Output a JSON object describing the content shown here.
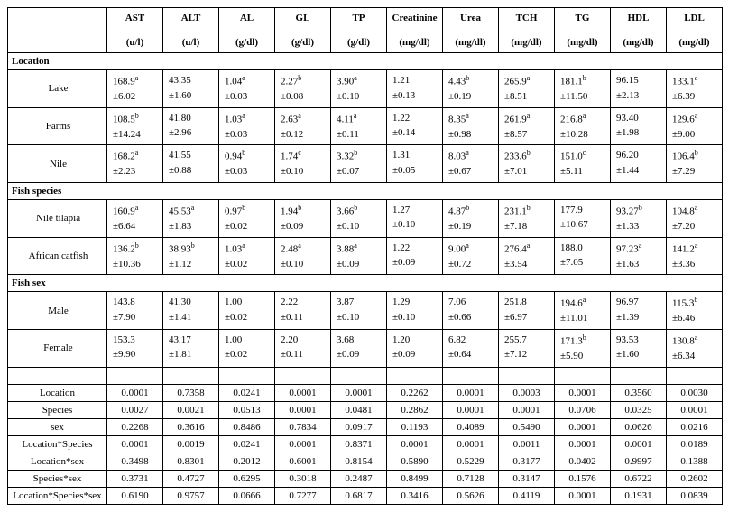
{
  "columns": [
    {
      "name": "AST",
      "unit": "(u/l)"
    },
    {
      "name": "ALT",
      "unit": "(u/l)"
    },
    {
      "name": "AL",
      "unit": "(g/dl)"
    },
    {
      "name": "GL",
      "unit": "(g/dl)"
    },
    {
      "name": "TP",
      "unit": "(g/dl)"
    },
    {
      "name": "Creatinine",
      "unit": "(mg/dl)"
    },
    {
      "name": "Urea",
      "unit": "(mg/dl)"
    },
    {
      "name": "TCH",
      "unit": "(mg/dl)"
    },
    {
      "name": "TG",
      "unit": "(mg/dl)"
    },
    {
      "name": "HDL",
      "unit": "(mg/dl)"
    },
    {
      "name": "LDL",
      "unit": "(mg/dl)"
    }
  ],
  "sections": [
    {
      "title": "Location",
      "rows": [
        {
          "label": "Lake",
          "cells": [
            {
              "m": "168.9",
              "s": "a",
              "e": "±6.02"
            },
            {
              "m": "43.35",
              "s": "",
              "e": "±1.60"
            },
            {
              "m": "1.04",
              "s": "a",
              "e": "±0.03"
            },
            {
              "m": "2.27",
              "s": "b",
              "e": "±0.08"
            },
            {
              "m": "3.90",
              "s": "a",
              "e": "±0.10"
            },
            {
              "m": "1.21",
              "s": "",
              "e": "±0.13"
            },
            {
              "m": "4.43",
              "s": "b",
              "e": "±0.19"
            },
            {
              "m": "265.9",
              "s": "a",
              "e": "±8.51"
            },
            {
              "m": "181.1",
              "s": "b",
              "e": "±11.50"
            },
            {
              "m": "96.15",
              "s": "",
              "e": "±2.13"
            },
            {
              "m": "133.1",
              "s": "a",
              "e": "±6.39"
            }
          ]
        },
        {
          "label": "Farms",
          "cells": [
            {
              "m": "108.5",
              "s": "b",
              "e": "±14.24"
            },
            {
              "m": "41.80",
              "s": "",
              "e": "±2.96"
            },
            {
              "m": "1.03",
              "s": "a",
              "e": "±0.03"
            },
            {
              "m": "2.63",
              "s": "a",
              "e": "±0.12"
            },
            {
              "m": "4.11",
              "s": "a",
              "e": "±0.11"
            },
            {
              "m": "1.22",
              "s": "",
              "e": "±0.14"
            },
            {
              "m": "8.35",
              "s": "a",
              "e": "±0.98"
            },
            {
              "m": "261.9",
              "s": "a",
              "e": "±8.57"
            },
            {
              "m": "216.8",
              "s": "a",
              "e": "±10.28"
            },
            {
              "m": "93.40",
              "s": "",
              "e": "±1.98"
            },
            {
              "m": "129.6",
              "s": "a",
              "e": "±9.00"
            }
          ]
        },
        {
          "label": "Nile",
          "cells": [
            {
              "m": "168.2",
              "s": "a",
              "e": "±2.23"
            },
            {
              "m": "41.55",
              "s": "",
              "e": "±0.88"
            },
            {
              "m": "0.94",
              "s": "b",
              "e": "±0.03"
            },
            {
              "m": "1.74",
              "s": "c",
              "e": "±0.10"
            },
            {
              "m": "3.32",
              "s": "b",
              "e": "±0.07"
            },
            {
              "m": "1.31",
              "s": "",
              "e": "±0.05"
            },
            {
              "m": "8.03",
              "s": "a",
              "e": "±0.67"
            },
            {
              "m": "233.6",
              "s": "b",
              "e": "±7.01"
            },
            {
              "m": "151.0",
              "s": "c",
              "e": "±5.11"
            },
            {
              "m": "96.20",
              "s": "",
              "e": "±1.44"
            },
            {
              "m": "106.4",
              "s": "b",
              "e": "±7.29"
            }
          ]
        }
      ]
    },
    {
      "title": "Fish species",
      "rows": [
        {
          "label": "Nile tilapia",
          "cells": [
            {
              "m": "160.9",
              "s": "a",
              "e": "±6.64"
            },
            {
              "m": "45.53",
              "s": "a",
              "e": "±1.83"
            },
            {
              "m": "0.97",
              "s": "b",
              "e": "±0.02"
            },
            {
              "m": "1.94",
              "s": "b",
              "e": "±0.09"
            },
            {
              "m": "3.66",
              "s": "b",
              "e": "±0.10"
            },
            {
              "m": "1.27",
              "s": "",
              "e": "±0.10"
            },
            {
              "m": "4.87",
              "s": "b",
              "e": "±0.19"
            },
            {
              "m": "231.1",
              "s": "b",
              "e": "±7.18"
            },
            {
              "m": "177.9",
              "s": "",
              "e": "±10.67"
            },
            {
              "m": "93.27",
              "s": "b",
              "e": "±1.33"
            },
            {
              "m": "104.8",
              "s": "a",
              "e": "±7.20"
            }
          ]
        },
        {
          "label": "African catfish",
          "cells": [
            {
              "m": "136.2",
              "s": "b",
              "e": "±10.36"
            },
            {
              "m": "38.93",
              "s": "b",
              "e": "±1.12"
            },
            {
              "m": "1.03",
              "s": "a",
              "e": "±0.02"
            },
            {
              "m": "2.48",
              "s": "a",
              "e": "±0.10"
            },
            {
              "m": "3.88",
              "s": "a",
              "e": "±0.09"
            },
            {
              "m": "1.22",
              "s": "",
              "e": "±0.09"
            },
            {
              "m": "9.00",
              "s": "a",
              "e": "±0.72"
            },
            {
              "m": "276.4",
              "s": "a",
              "e": "±3.54"
            },
            {
              "m": "188.0",
              "s": "",
              "e": "±7.05"
            },
            {
              "m": "97.23",
              "s": "a",
              "e": "±1.63"
            },
            {
              "m": "141.2",
              "s": "a",
              "e": "±3.36"
            }
          ]
        }
      ]
    },
    {
      "title": "Fish sex",
      "rows": [
        {
          "label": "Male",
          "cells": [
            {
              "m": "143.8",
              "s": "",
              "e": "±7.90"
            },
            {
              "m": "41.30",
              "s": "",
              "e": "±1.41"
            },
            {
              "m": "1.00",
              "s": "",
              "e": "±0.02"
            },
            {
              "m": "2.22",
              "s": "",
              "e": "±0.11"
            },
            {
              "m": "3.87",
              "s": "",
              "e": "±0.10"
            },
            {
              "m": "1.29",
              "s": "",
              "e": "±0.10"
            },
            {
              "m": "7.06",
              "s": "",
              "e": "±0.66"
            },
            {
              "m": "251.8",
              "s": "",
              "e": "±6.97"
            },
            {
              "m": "194.6",
              "s": "a",
              "e": "±11.01"
            },
            {
              "m": "96.97",
              "s": "",
              "e": "±1.39"
            },
            {
              "m": "115.3",
              "s": "b",
              "e": "±6.46"
            }
          ]
        },
        {
          "label": "Female",
          "cells": [
            {
              "m": "153.3",
              "s": "",
              "e": "±9.90"
            },
            {
              "m": "43.17",
              "s": "",
              "e": "±1.81"
            },
            {
              "m": "1.00",
              "s": "",
              "e": "±0.02"
            },
            {
              "m": "2.20",
              "s": "",
              "e": "±0.11"
            },
            {
              "m": "3.68",
              "s": "",
              "e": "±0.09"
            },
            {
              "m": "1.20",
              "s": "",
              "e": "±0.09"
            },
            {
              "m": "6.82",
              "s": "",
              "e": "±0.64"
            },
            {
              "m": "255.7",
              "s": "",
              "e": "±7.12"
            },
            {
              "m": "171.3",
              "s": "b",
              "e": "±5.90"
            },
            {
              "m": "93.53",
              "s": "",
              "e": "±1.60"
            },
            {
              "m": "130.8",
              "s": "a",
              "e": "±6.34"
            }
          ]
        }
      ]
    }
  ],
  "pvalues": [
    {
      "label": "Location",
      "v": [
        "0.0001",
        "0.7358",
        "0.0241",
        "0.0001",
        "0.0001",
        "0.2262",
        "0.0001",
        "0.0003",
        "0.0001",
        "0.3560",
        "0.0030"
      ]
    },
    {
      "label": "Species",
      "v": [
        "0.0027",
        "0.0021",
        "0.0513",
        "0.0001",
        "0.0481",
        "0.2862",
        "0.0001",
        "0.0001",
        "0.0706",
        "0.0325",
        "0.0001"
      ]
    },
    {
      "label": "sex",
      "v": [
        "0.2268",
        "0.3616",
        "0.8486",
        "0.7834",
        "0.0917",
        "0.1193",
        "0.4089",
        "0.5490",
        "0.0001",
        "0.0626",
        "0.0216"
      ]
    },
    {
      "label": "Location*Species",
      "v": [
        "0.0001",
        "0.0019",
        "0.0241",
        "0.0001",
        "0.8371",
        "0.0001",
        "0.0001",
        "0.0011",
        "0.0001",
        "0.0001",
        "0.0189"
      ]
    },
    {
      "label": "Location*sex",
      "v": [
        "0.3498",
        "0.8301",
        "0.2012",
        "0.6001",
        "0.8154",
        "0.5890",
        "0.5229",
        "0.3177",
        "0.0402",
        "0.9997",
        "0.1388"
      ]
    },
    {
      "label": "Species*sex",
      "v": [
        "0.3731",
        "0.4727",
        "0.6295",
        "0.3018",
        "0.2487",
        "0.8499",
        "0.7128",
        "0.3147",
        "0.1576",
        "0.6722",
        "0.2602"
      ]
    },
    {
      "label": "Location*Species*sex",
      "v": [
        "0.6190",
        "0.9757",
        "0.0666",
        "0.7277",
        "0.6817",
        "0.3416",
        "0.5626",
        "0.4119",
        "0.0001",
        "0.1931",
        "0.0839"
      ]
    }
  ]
}
